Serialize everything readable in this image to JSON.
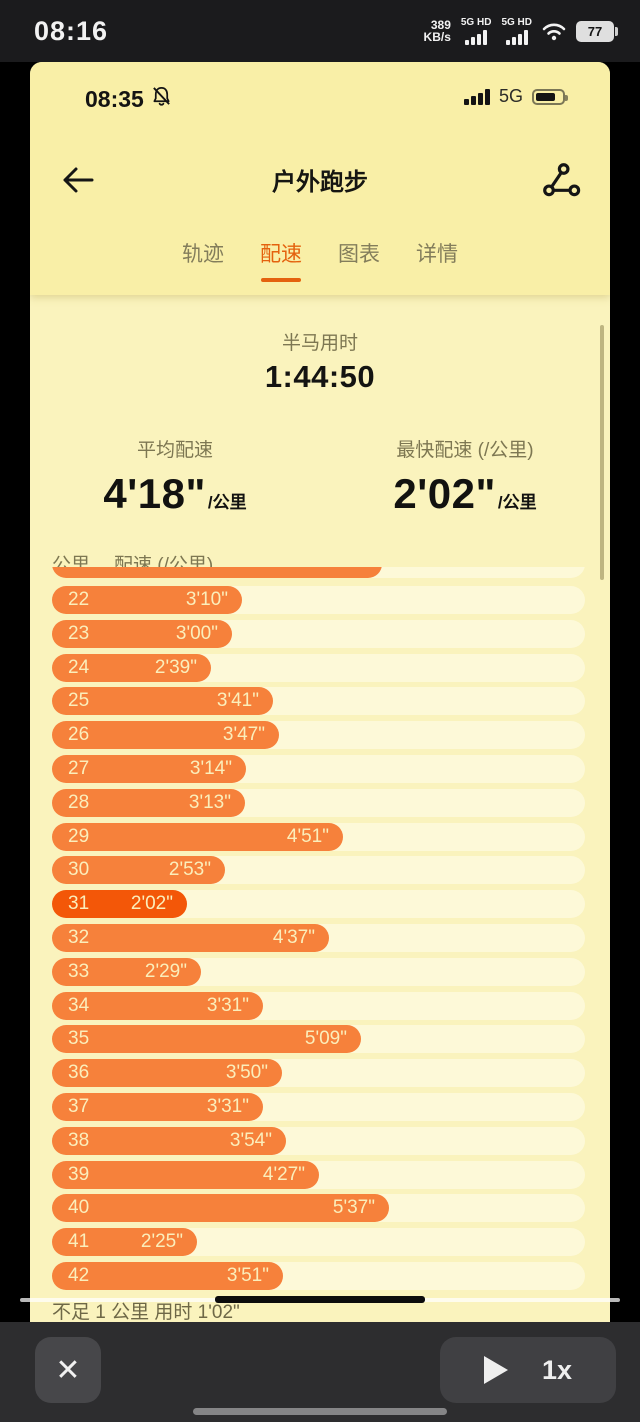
{
  "android_status_bar": {
    "time": "08:16",
    "net_speed_value": "389",
    "net_speed_unit": "KB/s",
    "sim1_label": "5G HD",
    "sim2_label": "5G HD",
    "battery_percent": "77"
  },
  "phone_status_bar": {
    "time": "08:35",
    "network": "5G"
  },
  "header": {
    "title": "户外跑步"
  },
  "tabs": [
    {
      "label": "轨迹",
      "active": false
    },
    {
      "label": "配速",
      "active": true
    },
    {
      "label": "图表",
      "active": false
    },
    {
      "label": "详情",
      "active": false
    }
  ],
  "summary": {
    "duration_label": "半马用时",
    "duration_value": "1:44:50",
    "avg_label": "平均配速",
    "avg_value": "4'18\"",
    "avg_unit": "/公里",
    "fastest_label": "最快配速 (/公里)",
    "fastest_value": "2'02\"",
    "fastest_unit": "/公里"
  },
  "pace_table": {
    "col_km": "公里",
    "col_pace": "配速 (/公里)",
    "partial_bar_width": 330,
    "highlight_km": "31",
    "rows": [
      {
        "km": "22",
        "pace": "3'10\""
      },
      {
        "km": "23",
        "pace": "3'00\""
      },
      {
        "km": "24",
        "pace": "2'39\""
      },
      {
        "km": "25",
        "pace": "3'41\""
      },
      {
        "km": "26",
        "pace": "3'47\""
      },
      {
        "km": "27",
        "pace": "3'14\""
      },
      {
        "km": "28",
        "pace": "3'13\""
      },
      {
        "km": "29",
        "pace": "4'51\""
      },
      {
        "km": "30",
        "pace": "2'53\""
      },
      {
        "km": "31",
        "pace": "2'02\""
      },
      {
        "km": "32",
        "pace": "4'37\""
      },
      {
        "km": "33",
        "pace": "2'29\""
      },
      {
        "km": "34",
        "pace": "3'31\""
      },
      {
        "km": "35",
        "pace": "5'09\""
      },
      {
        "km": "36",
        "pace": "3'50\""
      },
      {
        "km": "37",
        "pace": "3'31\""
      },
      {
        "km": "38",
        "pace": "3'54\""
      },
      {
        "km": "39",
        "pace": "4'27\""
      },
      {
        "km": "40",
        "pace": "5'37\""
      },
      {
        "km": "41",
        "pace": "2'25\""
      },
      {
        "km": "42",
        "pace": "3'51\""
      }
    ],
    "footer": "不足 1 公里 用时 1'02\""
  },
  "player": {
    "close_glyph": "✕",
    "speed": "1x"
  },
  "colors": {
    "bar": "#f6813b",
    "bar_fastest": "#f35708",
    "accent": "#e4620e",
    "header_bg": "#f9efa7",
    "content_bg": "#faf3bd"
  }
}
